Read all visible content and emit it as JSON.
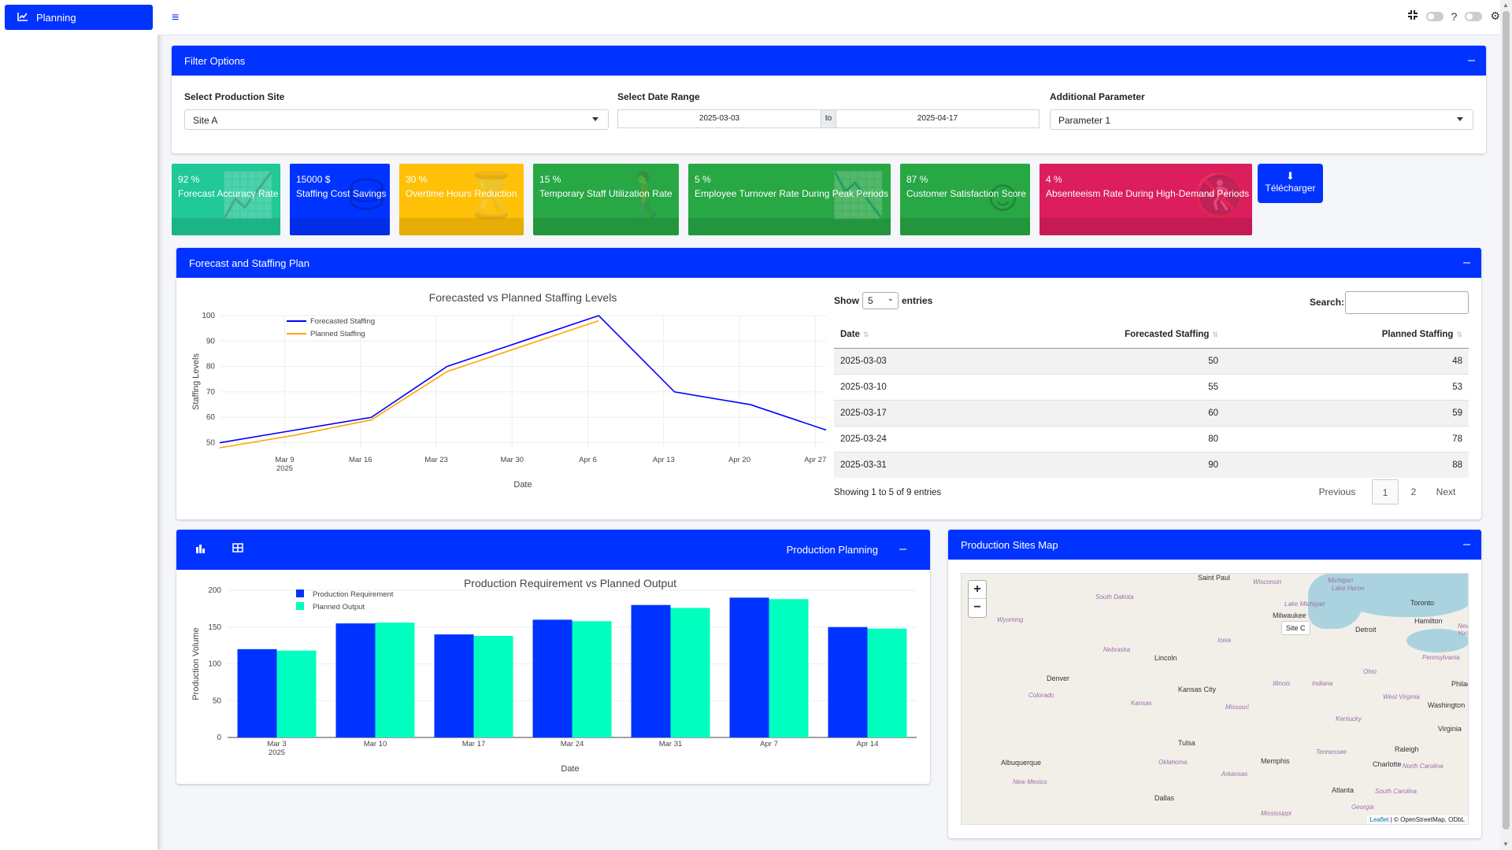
{
  "app": {
    "brand_label": "Planning"
  },
  "filters": {
    "title": "Filter Options",
    "site_label": "Select Production Site",
    "site_value": "Site A",
    "date_label": "Select Date Range",
    "date_start": "2025-03-03",
    "date_to": "to",
    "date_end": "2025-04-17",
    "param_label": "Additional Parameter",
    "param_value": "Parameter 1"
  },
  "kpis": [
    {
      "value": "92 %",
      "label": "Forecast Accuracy Rate",
      "color": "#20c997",
      "icon": "chart-line-icon"
    },
    {
      "value": "15000 $",
      "label": "Staffing Cost Savings",
      "color": "#0033ff",
      "icon": "coins-icon"
    },
    {
      "value": "30 %",
      "label": "Overtime Hours Reduction",
      "color": "#ffc107",
      "icon": "hourglass-icon"
    },
    {
      "value": "15 %",
      "label": "Temporary Staff Utilization Rate",
      "color": "#28a745",
      "icon": "user-icon"
    },
    {
      "value": "5 %",
      "label": "Employee Turnover Rate During Peak Periods",
      "color": "#28a745",
      "icon": "chart-area-icon"
    },
    {
      "value": "87 %",
      "label": "Customer Satisfaction Score",
      "color": "#28a745",
      "icon": "smile-icon"
    },
    {
      "value": "4 %",
      "label": "Absenteeism Rate During High-Demand Periods",
      "color": "#dc1d5e",
      "icon": "user-times-icon"
    }
  ],
  "download_label": "Télécharger",
  "forecast": {
    "title": "Forecast and Staffing Plan",
    "show_label": "Show",
    "entries_value": "5",
    "entries_label": "entries",
    "search_label": "Search:",
    "columns": [
      "Date",
      "Forecasted Staffing",
      "Planned Staffing"
    ],
    "rows": [
      [
        "2025-03-03",
        "50",
        "48"
      ],
      [
        "2025-03-10",
        "55",
        "53"
      ],
      [
        "2025-03-17",
        "60",
        "59"
      ],
      [
        "2025-03-24",
        "80",
        "78"
      ],
      [
        "2025-03-31",
        "90",
        "88"
      ]
    ],
    "info": "Showing 1 to 5 of 9 entries",
    "pager": {
      "previous": "Previous",
      "page1": "1",
      "page2": "2",
      "next": "Next"
    }
  },
  "production": {
    "title": "Production Planning"
  },
  "map": {
    "title": "Production Sites Map",
    "tooltip": "Site C",
    "attribution_leaflet": "Leaflet",
    "attribution_rest": " | © OpenStreetMap, ODbL",
    "cities": [
      "Saint Paul",
      "Toronto",
      "Milwaukee",
      "Detroit",
      "Hamilton",
      "Lincoln",
      "Denver",
      "Kansas City",
      "Tulsa",
      "Albuquerque",
      "Memphis",
      "Raleigh",
      "Charlotte",
      "Atlanta",
      "Dallas",
      "Washington",
      "Virginia",
      "Philadelphia"
    ],
    "states": [
      "South Dakota",
      "Wisconsin",
      "Michigan",
      "Lake Huron",
      "Lake Michigan",
      "Wyoming",
      "Iowa",
      "Nebraska",
      "Ohio",
      "Pennsylvania",
      "Colorado",
      "Illinois",
      "Indiana",
      "Kansas",
      "Missouri",
      "West Virginia",
      "Kentucky",
      "Oklahoma",
      "Tennessee",
      "Arkansas",
      "North Carolina",
      "New Mexico",
      "Mississippi",
      "South Carolina",
      "Georgia",
      "New York"
    ]
  },
  "chart_data": [
    {
      "type": "line",
      "title": "Forecasted vs Planned Staffing Levels",
      "xlabel": "Date",
      "ylabel": "Staffing Levels",
      "x": [
        "2025-03-03",
        "2025-03-10",
        "2025-03-17",
        "2025-03-24",
        "2025-03-31",
        "2025-04-07",
        "2025-04-14",
        "2025-04-21",
        "2025-04-28"
      ],
      "xticks": [
        "Mar 9\n2025",
        "Mar 16",
        "Mar 23",
        "Mar 30",
        "Apr 6",
        "Apr 13",
        "Apr 20",
        "Apr 27"
      ],
      "yticks": [
        50,
        60,
        70,
        80,
        90,
        100
      ],
      "ylim": [
        48,
        100
      ],
      "series": [
        {
          "name": "Forecasted Staffing",
          "color": "#0000ff",
          "values": [
            50,
            55,
            60,
            80,
            90,
            100,
            70,
            65,
            55
          ]
        },
        {
          "name": "Planned Staffing",
          "color": "#ffa500",
          "values": [
            48,
            53,
            59,
            78,
            88,
            98,
            null,
            null,
            null
          ]
        }
      ],
      "legend": "top-left",
      "grid": true
    },
    {
      "type": "bar",
      "title": "Production Requirement vs Planned Output",
      "xlabel": "Date",
      "ylabel": "Production Volume",
      "categories": [
        "Mar 3\n2025",
        "Mar 10",
        "Mar 17",
        "Mar 24",
        "Mar 31",
        "Apr 7",
        "Apr 14"
      ],
      "yticks": [
        0,
        50,
        100,
        150,
        200
      ],
      "ylim": [
        0,
        200
      ],
      "series": [
        {
          "name": "Production Requirement",
          "color": "#0033ff",
          "values": [
            120,
            155,
            140,
            160,
            180,
            190,
            150
          ]
        },
        {
          "name": "Planned Output",
          "color": "#00ffbf",
          "values": [
            118,
            156,
            138,
            158,
            176,
            188,
            148
          ]
        }
      ],
      "legend": "top-left",
      "grid": true
    }
  ]
}
